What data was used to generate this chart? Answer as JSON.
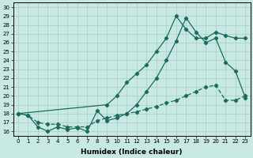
{
  "xlabel": "Humidex (Indice chaleur)",
  "xlim": [
    -0.5,
    23.5
  ],
  "ylim": [
    15.5,
    30.5
  ],
  "xticks": [
    0,
    1,
    2,
    3,
    4,
    5,
    6,
    7,
    8,
    9,
    10,
    11,
    12,
    13,
    14,
    15,
    16,
    17,
    18,
    19,
    20,
    21,
    22,
    23
  ],
  "yticks": [
    16,
    17,
    18,
    19,
    20,
    21,
    22,
    23,
    24,
    25,
    26,
    27,
    28,
    29,
    30
  ],
  "bg_color": "#c8e8e4",
  "grid_color": "#a8ccc8",
  "line_color": "#1a6b5a",
  "line1_x": [
    0,
    1,
    2,
    3,
    4,
    5,
    6,
    7,
    8,
    9,
    10,
    11,
    12,
    13,
    14,
    15,
    16,
    17,
    18,
    19,
    20,
    21,
    22,
    23
  ],
  "line1_y": [
    18.0,
    17.8,
    16.5,
    16.0,
    16.5,
    16.2,
    16.4,
    16.0,
    18.3,
    17.2,
    17.5,
    18.0,
    19.0,
    20.5,
    22.0,
    24.0,
    26.2,
    28.8,
    27.2,
    26.0,
    26.5,
    23.8,
    22.8,
    19.8
  ],
  "line2_x": [
    0,
    9,
    10,
    11,
    12,
    13,
    14,
    15,
    16,
    17,
    18,
    19,
    20,
    21,
    22,
    23
  ],
  "line2_y": [
    18.0,
    19.0,
    20.0,
    21.5,
    22.5,
    23.5,
    25.0,
    26.5,
    29.0,
    27.5,
    26.5,
    26.5,
    27.2,
    26.8,
    26.5,
    26.5
  ],
  "line3_x": [
    0,
    1,
    2,
    3,
    4,
    5,
    6,
    7,
    8,
    9,
    10,
    11,
    12,
    13,
    14,
    15,
    16,
    17,
    18,
    19,
    20,
    21,
    22,
    23
  ],
  "line3_y": [
    18.0,
    17.8,
    17.0,
    16.8,
    16.8,
    16.5,
    16.5,
    16.5,
    17.2,
    17.5,
    17.8,
    18.0,
    18.2,
    18.5,
    18.8,
    19.2,
    19.5,
    20.0,
    20.5,
    21.0,
    21.2,
    19.5,
    19.5,
    20.0
  ],
  "marker_size": 2.2,
  "line_width": 0.9,
  "tick_fontsize": 5.0,
  "label_fontsize": 6.5
}
